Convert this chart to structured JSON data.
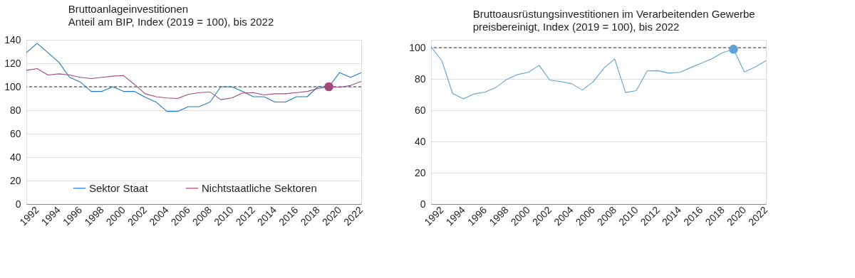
{
  "chart_data": [
    {
      "type": "line",
      "title": "Bruttoanlageinvestitionen",
      "subtitle": "Anteil am BIP, Index (2019 = 100), bis 2022",
      "x": [
        1991,
        1992,
        1993,
        1994,
        1995,
        1996,
        1997,
        1998,
        1999,
        2000,
        2001,
        2002,
        2003,
        2004,
        2005,
        2006,
        2007,
        2008,
        2009,
        2010,
        2011,
        2012,
        2013,
        2014,
        2015,
        2016,
        2017,
        2018,
        2019,
        2020,
        2021,
        2022
      ],
      "series": [
        {
          "name": "Sektor Staat",
          "color": "#1f78c4",
          "values": [
            129,
            137,
            129,
            121,
            108,
            104,
            96,
            96,
            100,
            96,
            96,
            91,
            87,
            79,
            79,
            83,
            83,
            87,
            100,
            100,
            96,
            91.5,
            91.5,
            87,
            87,
            91.5,
            91.5,
            100,
            100,
            112,
            108,
            112
          ]
        },
        {
          "name": "Nichtstaatliche Sektoren",
          "color": "#a2497e",
          "values": [
            114,
            115.5,
            110,
            111,
            110,
            108,
            107,
            108,
            109,
            109.5,
            102,
            94,
            91.5,
            90.5,
            90,
            93.5,
            95,
            95.5,
            89,
            90.5,
            94.5,
            95,
            93,
            94,
            94,
            95,
            96,
            98.5,
            100,
            99.5,
            101,
            104.5
          ]
        },
        {
          "type": "scatter",
          "color": "#a2497e",
          "marker": "circle",
          "x": [
            2019
          ],
          "values": [
            100
          ]
        }
      ],
      "xlim": [
        1991,
        2022
      ],
      "xticks": [
        1992,
        1994,
        1996,
        1998,
        2000,
        2002,
        2004,
        2006,
        2008,
        2010,
        2012,
        2014,
        2016,
        2018,
        2020,
        2022
      ],
      "ylim": [
        0,
        140
      ],
      "yticks": [
        0,
        20,
        40,
        60,
        80,
        100,
        120,
        140
      ],
      "ref_lines": [
        {
          "axis": "y",
          "value": 100,
          "color": "#333333",
          "line_style": "dashed"
        }
      ],
      "grid": "y",
      "legend": "bottom",
      "marker": "none",
      "line_style": "solid"
    },
    {
      "type": "line",
      "title": "Bruttoausrüstungsinvestitionen im Verarbeitenden Gewerbe",
      "subtitle": "preisbereinigt, Index (2019 = 100), bis 2022",
      "x": [
        1991,
        1992,
        1993,
        1994,
        1995,
        1996,
        1997,
        1998,
        1999,
        2000,
        2001,
        2002,
        2003,
        2004,
        2005,
        2006,
        2007,
        2008,
        2009,
        2010,
        2011,
        2012,
        2013,
        2014,
        2015,
        2016,
        2017,
        2018,
        2019,
        2020,
        2021,
        2022
      ],
      "series": [
        {
          "color": "#5fa3d6",
          "values": [
            100.5,
            91.6,
            70.7,
            67.3,
            70.4,
            71.6,
            74.5,
            79.7,
            82.8,
            84.2,
            88.7,
            79.2,
            78.3,
            77,
            72.9,
            78.1,
            86.9,
            92.8,
            71.3,
            72.5,
            85.1,
            85.3,
            83.7,
            84.2,
            87.1,
            90,
            93,
            96.8,
            99,
            84.4,
            87.6,
            91.6
          ]
        },
        {
          "type": "scatter",
          "color": "#5fa3d6",
          "marker": "circle",
          "x": [
            2019
          ],
          "values": [
            99
          ]
        }
      ],
      "xlim": [
        1991,
        2022
      ],
      "xticks": [
        1992,
        1994,
        1996,
        1998,
        2000,
        2002,
        2004,
        2006,
        2008,
        2010,
        2012,
        2014,
        2016,
        2018,
        2020,
        2022
      ],
      "ylim": [
        0,
        105
      ],
      "yticks": [
        0,
        20,
        40,
        60,
        80,
        100
      ],
      "ref_lines": [
        {
          "axis": "y",
          "value": 100,
          "color": "#333333",
          "line_style": "dashed"
        }
      ],
      "grid": "y",
      "legend": false,
      "marker": "none",
      "line_style": "solid"
    }
  ]
}
